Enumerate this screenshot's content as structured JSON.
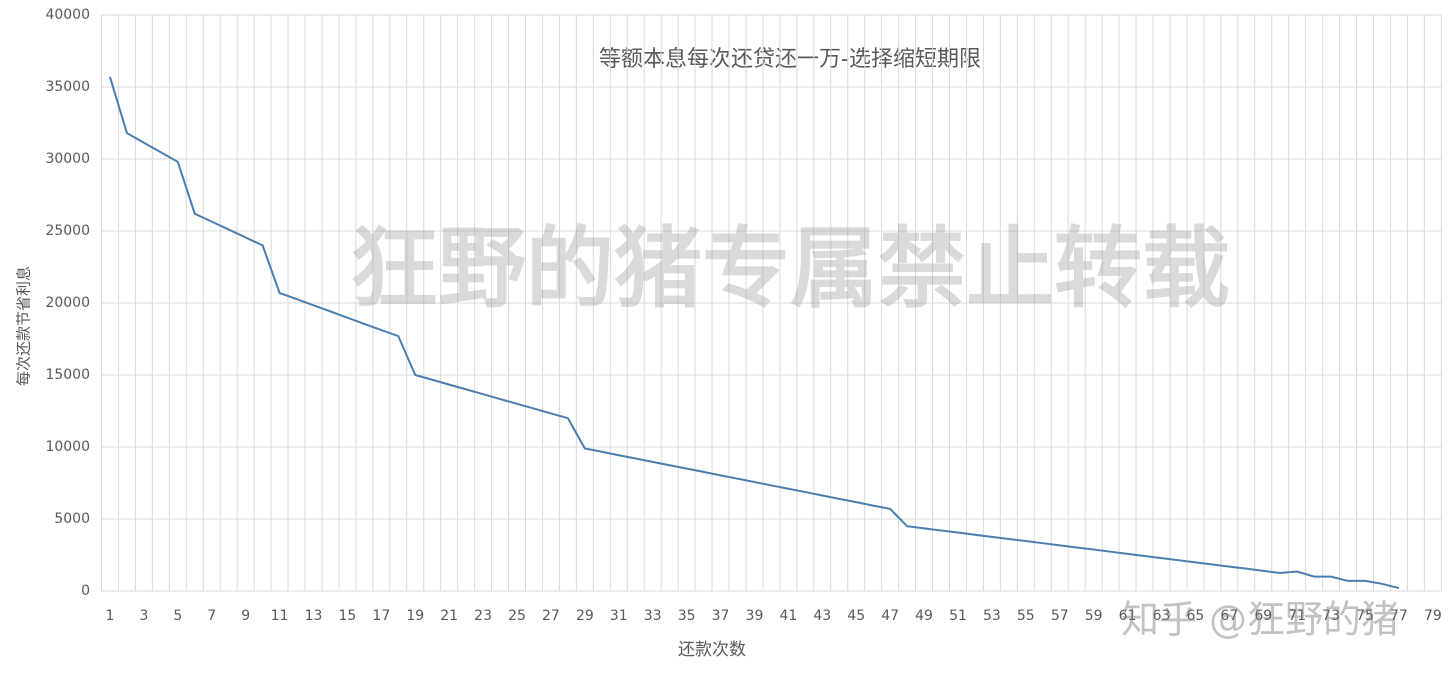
{
  "chart_data": {
    "type": "line",
    "title": "等额本息每次还贷还一万-选择缩短期限",
    "x_label": "还款次数",
    "y_label": "每次还款节省利息",
    "watermark": "狂野的猪专属禁止转载",
    "watermark_2": "知乎 @狂野的猪",
    "categories": [
      1,
      null,
      3,
      null,
      5,
      null,
      7,
      null,
      9,
      null,
      11,
      null,
      13,
      null,
      15,
      null,
      17,
      null,
      19,
      null,
      21,
      null,
      23,
      null,
      25,
      null,
      27,
      null,
      29,
      null,
      31,
      null,
      33,
      null,
      35,
      null,
      37,
      null,
      39,
      null,
      41,
      null,
      43,
      null,
      45,
      null,
      47,
      null,
      49,
      null,
      51,
      null,
      53,
      null,
      55,
      null,
      57,
      null,
      59,
      null,
      61,
      null,
      63,
      null,
      65,
      null,
      67,
      null,
      69,
      null,
      71,
      null,
      73,
      null,
      75,
      null,
      77,
      null,
      79
    ],
    "series": [
      {
        "color": "#4a7eb0",
        "values": [
          35700,
          31800,
          31130,
          30470,
          29800,
          26200,
          25650,
          25100,
          24550,
          24000,
          20700,
          20270,
          19840,
          19410,
          18980,
          18550,
          18120,
          17700,
          15000,
          14670,
          14330,
          14000,
          13670,
          13330,
          13000,
          12670,
          12330,
          12000,
          9900,
          9670,
          9430,
          9200,
          8970,
          8730,
          8500,
          8270,
          8030,
          7800,
          7570,
          7330,
          7100,
          6870,
          6630,
          6400,
          6170,
          5930,
          5700,
          4500,
          4350,
          4200,
          4060,
          3910,
          3760,
          3610,
          3470,
          3320,
          3170,
          3020,
          2880,
          2730,
          2580,
          2430,
          2280,
          2140,
          1990,
          1840,
          1690,
          1550,
          1400,
          1250,
          1350,
          1000,
          1000,
          700,
          700,
          500,
          200,
          null,
          null
        ]
      }
    ],
    "ylim": [
      0,
      40000
    ],
    "yticks": [
      0,
      5000,
      10000,
      15000,
      20000,
      25000,
      30000,
      35000,
      40000
    ],
    "grid": true
  }
}
